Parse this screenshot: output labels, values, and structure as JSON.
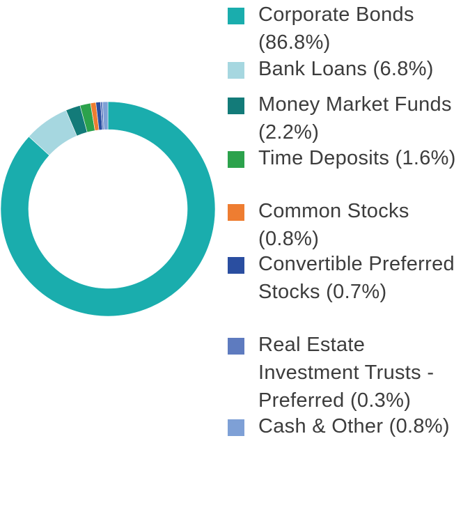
{
  "chart_data": {
    "type": "pie",
    "donut": true,
    "title": "",
    "legend_position": "right",
    "series": [
      {
        "label": "Corporate Bonds (86.8%)",
        "value": 86.8,
        "color": "#1aadad"
      },
      {
        "label": "Bank Loans (6.8%)",
        "value": 6.8,
        "color": "#a6d7e0"
      },
      {
        "label": "Money Market Funds (2.2%)",
        "value": 2.2,
        "color": "#137b79"
      },
      {
        "label": "Time Deposits (1.6%)",
        "value": 1.6,
        "color": "#2ca24c"
      },
      {
        "label": "Common Stocks (0.8%)",
        "value": 0.8,
        "color": "#ee7d31"
      },
      {
        "label": "Convertible Preferred Stocks (0.7%)",
        "value": 0.7,
        "color": "#2a4ea0"
      },
      {
        "label": "Real Estate Investment Trusts - Preferred (0.3%)",
        "value": 0.3,
        "color": "#5e7bbf"
      },
      {
        "label": "Cash & Other (0.8%)",
        "value": 0.8,
        "color": "#7ea0d6"
      }
    ]
  }
}
